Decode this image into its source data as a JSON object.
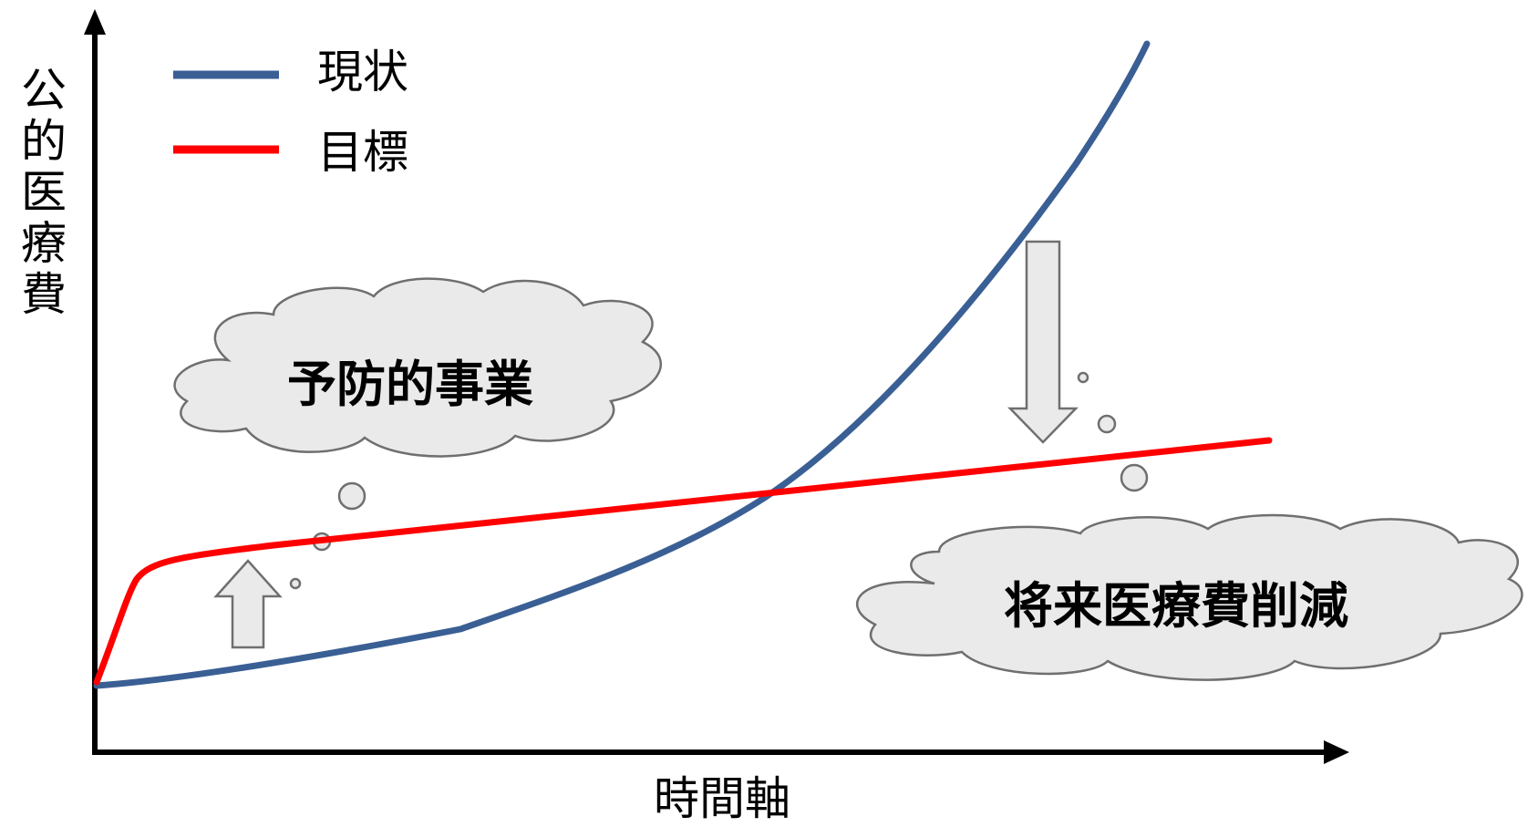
{
  "legend": [
    {
      "label": "現状",
      "color": "#3a5f94"
    },
    {
      "label": "目標",
      "color": "#ff0000"
    }
  ],
  "axes": {
    "x_label": "時間軸",
    "y_label": "公的医療費"
  },
  "callouts": {
    "left": "予防的事業",
    "right": "将来医療費削減"
  },
  "colors": {
    "current": "#3a5f94",
    "target": "#ff0000",
    "cloud_fill": "#eaeaea",
    "cloud_stroke": "#6f6f6f"
  }
}
